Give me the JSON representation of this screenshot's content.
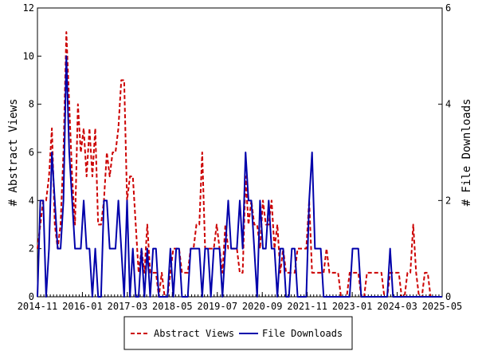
{
  "chart_data": {
    "type": "line",
    "ylabel_left": "# Abstract Views",
    "ylabel_right": "# File Downloads",
    "ylim_left": [
      0,
      12
    ],
    "ylim_right": [
      0,
      6
    ],
    "yticks_left": [
      "0",
      "2",
      "4",
      "6",
      "8",
      "10",
      "12"
    ],
    "yticks_right": [
      "0",
      "2",
      "4",
      "6"
    ],
    "x_range": [
      "2014-11",
      "2025-05"
    ],
    "x_ticks": [
      "2014-11",
      "2016-01",
      "2017-03",
      "2018-05",
      "2019-07",
      "2020-09",
      "2021-11",
      "2023-01",
      "2024-03",
      "2025-05"
    ],
    "grid": false,
    "legend_position": "bottom",
    "colors": {
      "abstract_views": "#cc0000",
      "file_downloads": "#0000aa"
    },
    "series": [
      {
        "name": "Abstract Views",
        "axis": "left",
        "style": "dashed",
        "values": [
          2,
          3,
          4,
          4,
          5,
          7,
          3,
          2,
          3,
          6,
          11,
          8,
          5,
          3,
          8,
          6,
          7,
          5,
          7,
          5,
          7,
          3,
          3,
          4,
          6,
          5,
          6,
          6,
          7,
          9,
          9,
          4,
          5,
          5,
          3,
          1,
          2,
          1,
          3,
          1,
          1,
          1,
          0,
          1,
          0,
          0,
          1,
          2,
          2,
          2,
          1,
          1,
          1,
          2,
          2,
          3,
          3,
          6,
          2,
          2,
          2,
          2,
          3,
          2,
          1,
          3,
          2,
          2,
          2,
          2,
          1,
          1,
          5,
          3,
          4,
          3,
          3,
          2,
          4,
          3,
          3,
          4,
          2,
          3,
          1,
          2,
          1,
          1,
          1,
          1,
          2,
          2,
          2,
          2,
          4,
          1,
          1,
          1,
          1,
          1,
          2,
          1,
          1,
          1,
          1,
          0,
          0,
          0,
          1,
          1,
          1,
          1,
          0,
          0,
          1,
          1,
          1,
          1,
          1,
          1,
          0,
          0,
          1,
          1,
          1,
          1,
          0,
          0,
          1,
          1,
          3,
          1,
          0,
          0,
          1,
          1,
          0,
          0,
          0,
          0,
          0
        ]
      },
      {
        "name": "File Downloads",
        "axis": "right",
        "style": "solid",
        "values": [
          0,
          2,
          2,
          0,
          1,
          3,
          2,
          1,
          1,
          2,
          5,
          3,
          2,
          1,
          1,
          1,
          2,
          1,
          1,
          0,
          1,
          0,
          0,
          2,
          2,
          1,
          1,
          1,
          2,
          1,
          0,
          2,
          0,
          1,
          0,
          0,
          1,
          0,
          1,
          0,
          1,
          1,
          0,
          0,
          0,
          0,
          1,
          0,
          1,
          1,
          0,
          0,
          0,
          1,
          1,
          1,
          1,
          0,
          1,
          1,
          0,
          1,
          1,
          1,
          0,
          1,
          2,
          1,
          1,
          1,
          2,
          1,
          3,
          2,
          2,
          1,
          0,
          2,
          1,
          1,
          2,
          1,
          1,
          0,
          1,
          1,
          0,
          0,
          1,
          1,
          0,
          0,
          0,
          0,
          2,
          3,
          1,
          1,
          1,
          0,
          0,
          0,
          0,
          0,
          0,
          0,
          0,
          0,
          0,
          1,
          1,
          1,
          0,
          0,
          0,
          0,
          0,
          0,
          0,
          0,
          0,
          0,
          1,
          0,
          0,
          0,
          0,
          0,
          0,
          0,
          0,
          0,
          0,
          0,
          0,
          0,
          0,
          0,
          0,
          0,
          0
        ]
      }
    ]
  }
}
